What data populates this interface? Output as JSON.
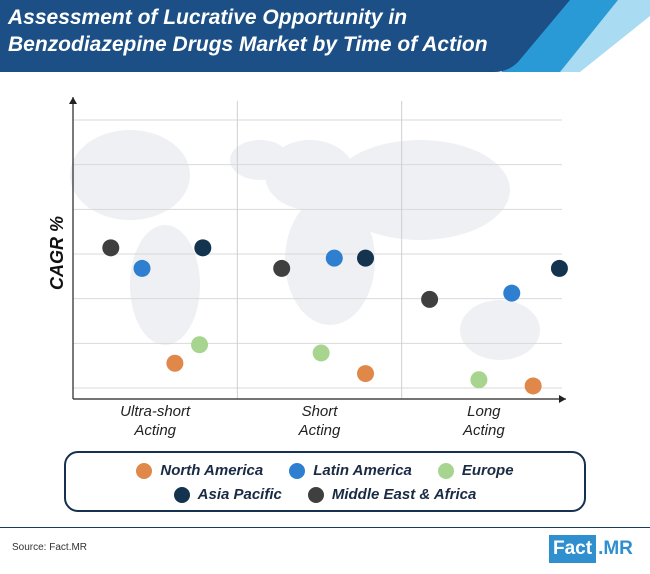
{
  "header": {
    "title_line1": "Assessment of Lucrative Opportunity in",
    "title_line2": "Benzodiazepine Drugs Market by Time of Action",
    "color_dark": "#1b4f86",
    "color_mid": "#2a8cc9",
    "color_light": "#7fc4e8"
  },
  "chart_data": {
    "type": "scatter",
    "title": "",
    "xlabel": "",
    "ylabel": "CAGR %",
    "categories": [
      {
        "line1": "Ultra-short",
        "line2": "Acting"
      },
      {
        "line1": "Short",
        "line2": "Acting"
      },
      {
        "line1": "Long",
        "line2": "Acting"
      }
    ],
    "ylim": [
      0,
      6.5
    ],
    "grid": true,
    "legend_placement": "bottom",
    "series": [
      {
        "name": "North America",
        "color": "#e0874a",
        "offsets": [
          0.62,
          0.78,
          0.8
        ],
        "values": [
          0.6,
          0.35,
          0.05
        ]
      },
      {
        "name": "Latin America",
        "color": "#2f7fd0",
        "offsets": [
          0.42,
          0.59,
          0.67
        ],
        "values": [
          2.9,
          3.15,
          2.3
        ]
      },
      {
        "name": "Europe",
        "color": "#a7d58f",
        "offsets": [
          0.77,
          0.51,
          0.47
        ],
        "values": [
          1.05,
          0.85,
          0.2
        ]
      },
      {
        "name": "Asia Pacific",
        "color": "#13334f",
        "offsets": [
          0.79,
          0.78,
          0.96
        ],
        "values": [
          3.4,
          3.15,
          2.9
        ]
      },
      {
        "name": "Middle East & Africa",
        "color": "#3f3f3f",
        "offsets": [
          0.23,
          0.27,
          0.17
        ],
        "values": [
          3.4,
          2.9,
          2.15
        ]
      }
    ]
  },
  "legend": {
    "row1": [
      "North America",
      "Latin America",
      "Europe"
    ],
    "row2": [
      "Asia Pacific",
      "Middle East & Africa"
    ]
  },
  "footer": {
    "source": "Source: Fact.MR",
    "brand_fact": "Fact",
    "brand_mr": ".MR"
  }
}
